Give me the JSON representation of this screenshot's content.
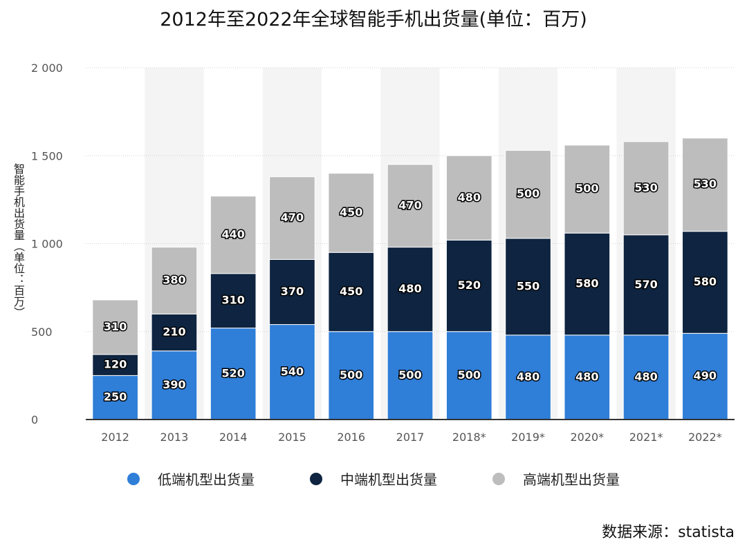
{
  "chart_data": {
    "type": "bar",
    "stacked": true,
    "title": "2012年至2022年全球智能手机出货量(单位：百万)",
    "xlabel": "",
    "ylabel": "智能手机出货量（单位：百万）",
    "ylim": [
      0,
      2000
    ],
    "yticks": [
      0,
      500,
      1000,
      1500,
      2000
    ],
    "ytick_labels": [
      "0",
      "500",
      "1 000",
      "1 500",
      "2 000"
    ],
    "categories": [
      "2012",
      "2013",
      "2014",
      "2015",
      "2016",
      "2017",
      "2018*",
      "2019*",
      "2020*",
      "2021*",
      "2022*"
    ],
    "series": [
      {
        "name": "低端机型出货量",
        "color": "#2f7ed8",
        "values": [
          250,
          390,
          520,
          540,
          500,
          500,
          500,
          480,
          480,
          480,
          490
        ]
      },
      {
        "name": "中端机型出货量",
        "color": "#0e2440",
        "values": [
          120,
          210,
          310,
          370,
          450,
          480,
          520,
          550,
          580,
          570,
          580
        ]
      },
      {
        "name": "高端机型出货量",
        "color": "#bdbdbd",
        "values": [
          310,
          380,
          440,
          470,
          450,
          470,
          480,
          500,
          500,
          530,
          530
        ]
      }
    ],
    "grid": true,
    "legend_position": "bottom",
    "source": "数据来源：statista"
  }
}
